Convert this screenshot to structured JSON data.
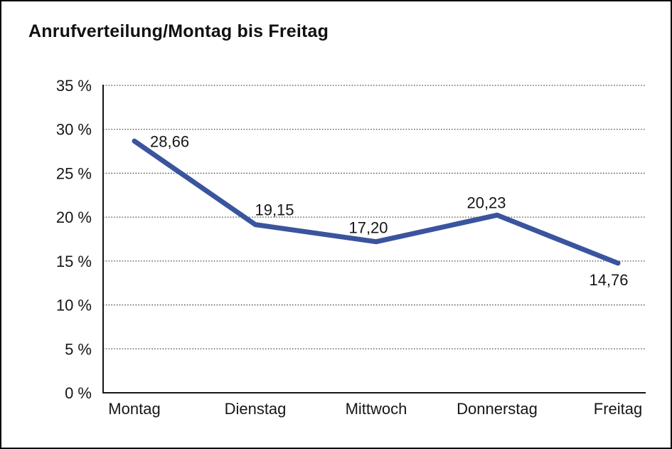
{
  "title": "Anrufverteilung/Montag bis Freitag",
  "chart_data": {
    "type": "line",
    "title": "Anrufverteilung/Montag bis Freitag",
    "categories": [
      "Montag",
      "Dienstag",
      "Mittwoch",
      "Donnerstag",
      "Freitag"
    ],
    "values": [
      28.66,
      19.15,
      17.2,
      20.23,
      14.76
    ],
    "value_labels": [
      "28,66",
      "19,15",
      "17,20",
      "20,23",
      "14,76"
    ],
    "xlabel": "",
    "ylabel": "",
    "ylim": [
      0,
      35
    ],
    "ytick_step": 5,
    "ytick_labels": [
      "0 %",
      "5 %",
      "10 %",
      "15 %",
      "20 %",
      "25 %",
      "30 %",
      "35 %"
    ],
    "grid": "horizontal-dotted",
    "legend_position": "none",
    "line_color": "#3A549E"
  },
  "colors": {
    "line": "#3A549E",
    "text": "#161616",
    "grid": "#444444",
    "axis": "#161616",
    "background": "#ffffff",
    "border": "#000000"
  }
}
